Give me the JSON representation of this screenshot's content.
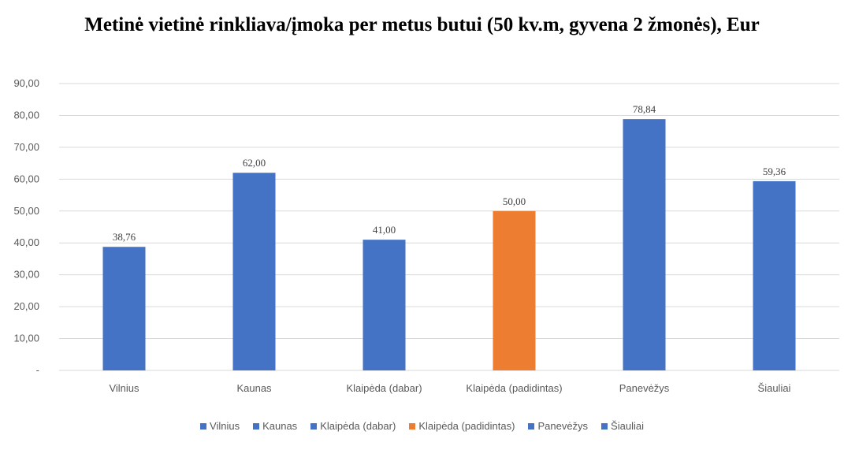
{
  "chart_data": {
    "type": "bar",
    "title": "Metinė vietinė rinkliava/įmoka per metus butui (50 kv.m, gyvena 2 žmonės), Eur",
    "xlabel": "",
    "ylabel": "",
    "ylim": [
      0,
      90
    ],
    "yticks": [
      0,
      10,
      20,
      30,
      40,
      50,
      60,
      70,
      80,
      90
    ],
    "ytick_labels": [
      "-",
      "10,00",
      "20,00",
      "30,00",
      "40,00",
      "50,00",
      "60,00",
      "70,00",
      "80,00",
      "90,00"
    ],
    "grid": true,
    "legend_position": "bottom",
    "categories": [
      "Vilnius",
      "Kaunas",
      "Klaipėda (dabar)",
      "Klaipėda (padidintas)",
      "Panevėžys",
      "Šiauliai"
    ],
    "values": [
      38.76,
      62.0,
      41.0,
      50.0,
      78.84,
      59.36
    ],
    "value_labels": [
      "38,76",
      "62,00",
      "41,00",
      "50,00",
      "78,84",
      "59,36"
    ],
    "colors": [
      "#4472C4",
      "#4472C4",
      "#4472C4",
      "#ED7D31",
      "#4472C4",
      "#4472C4"
    ]
  }
}
